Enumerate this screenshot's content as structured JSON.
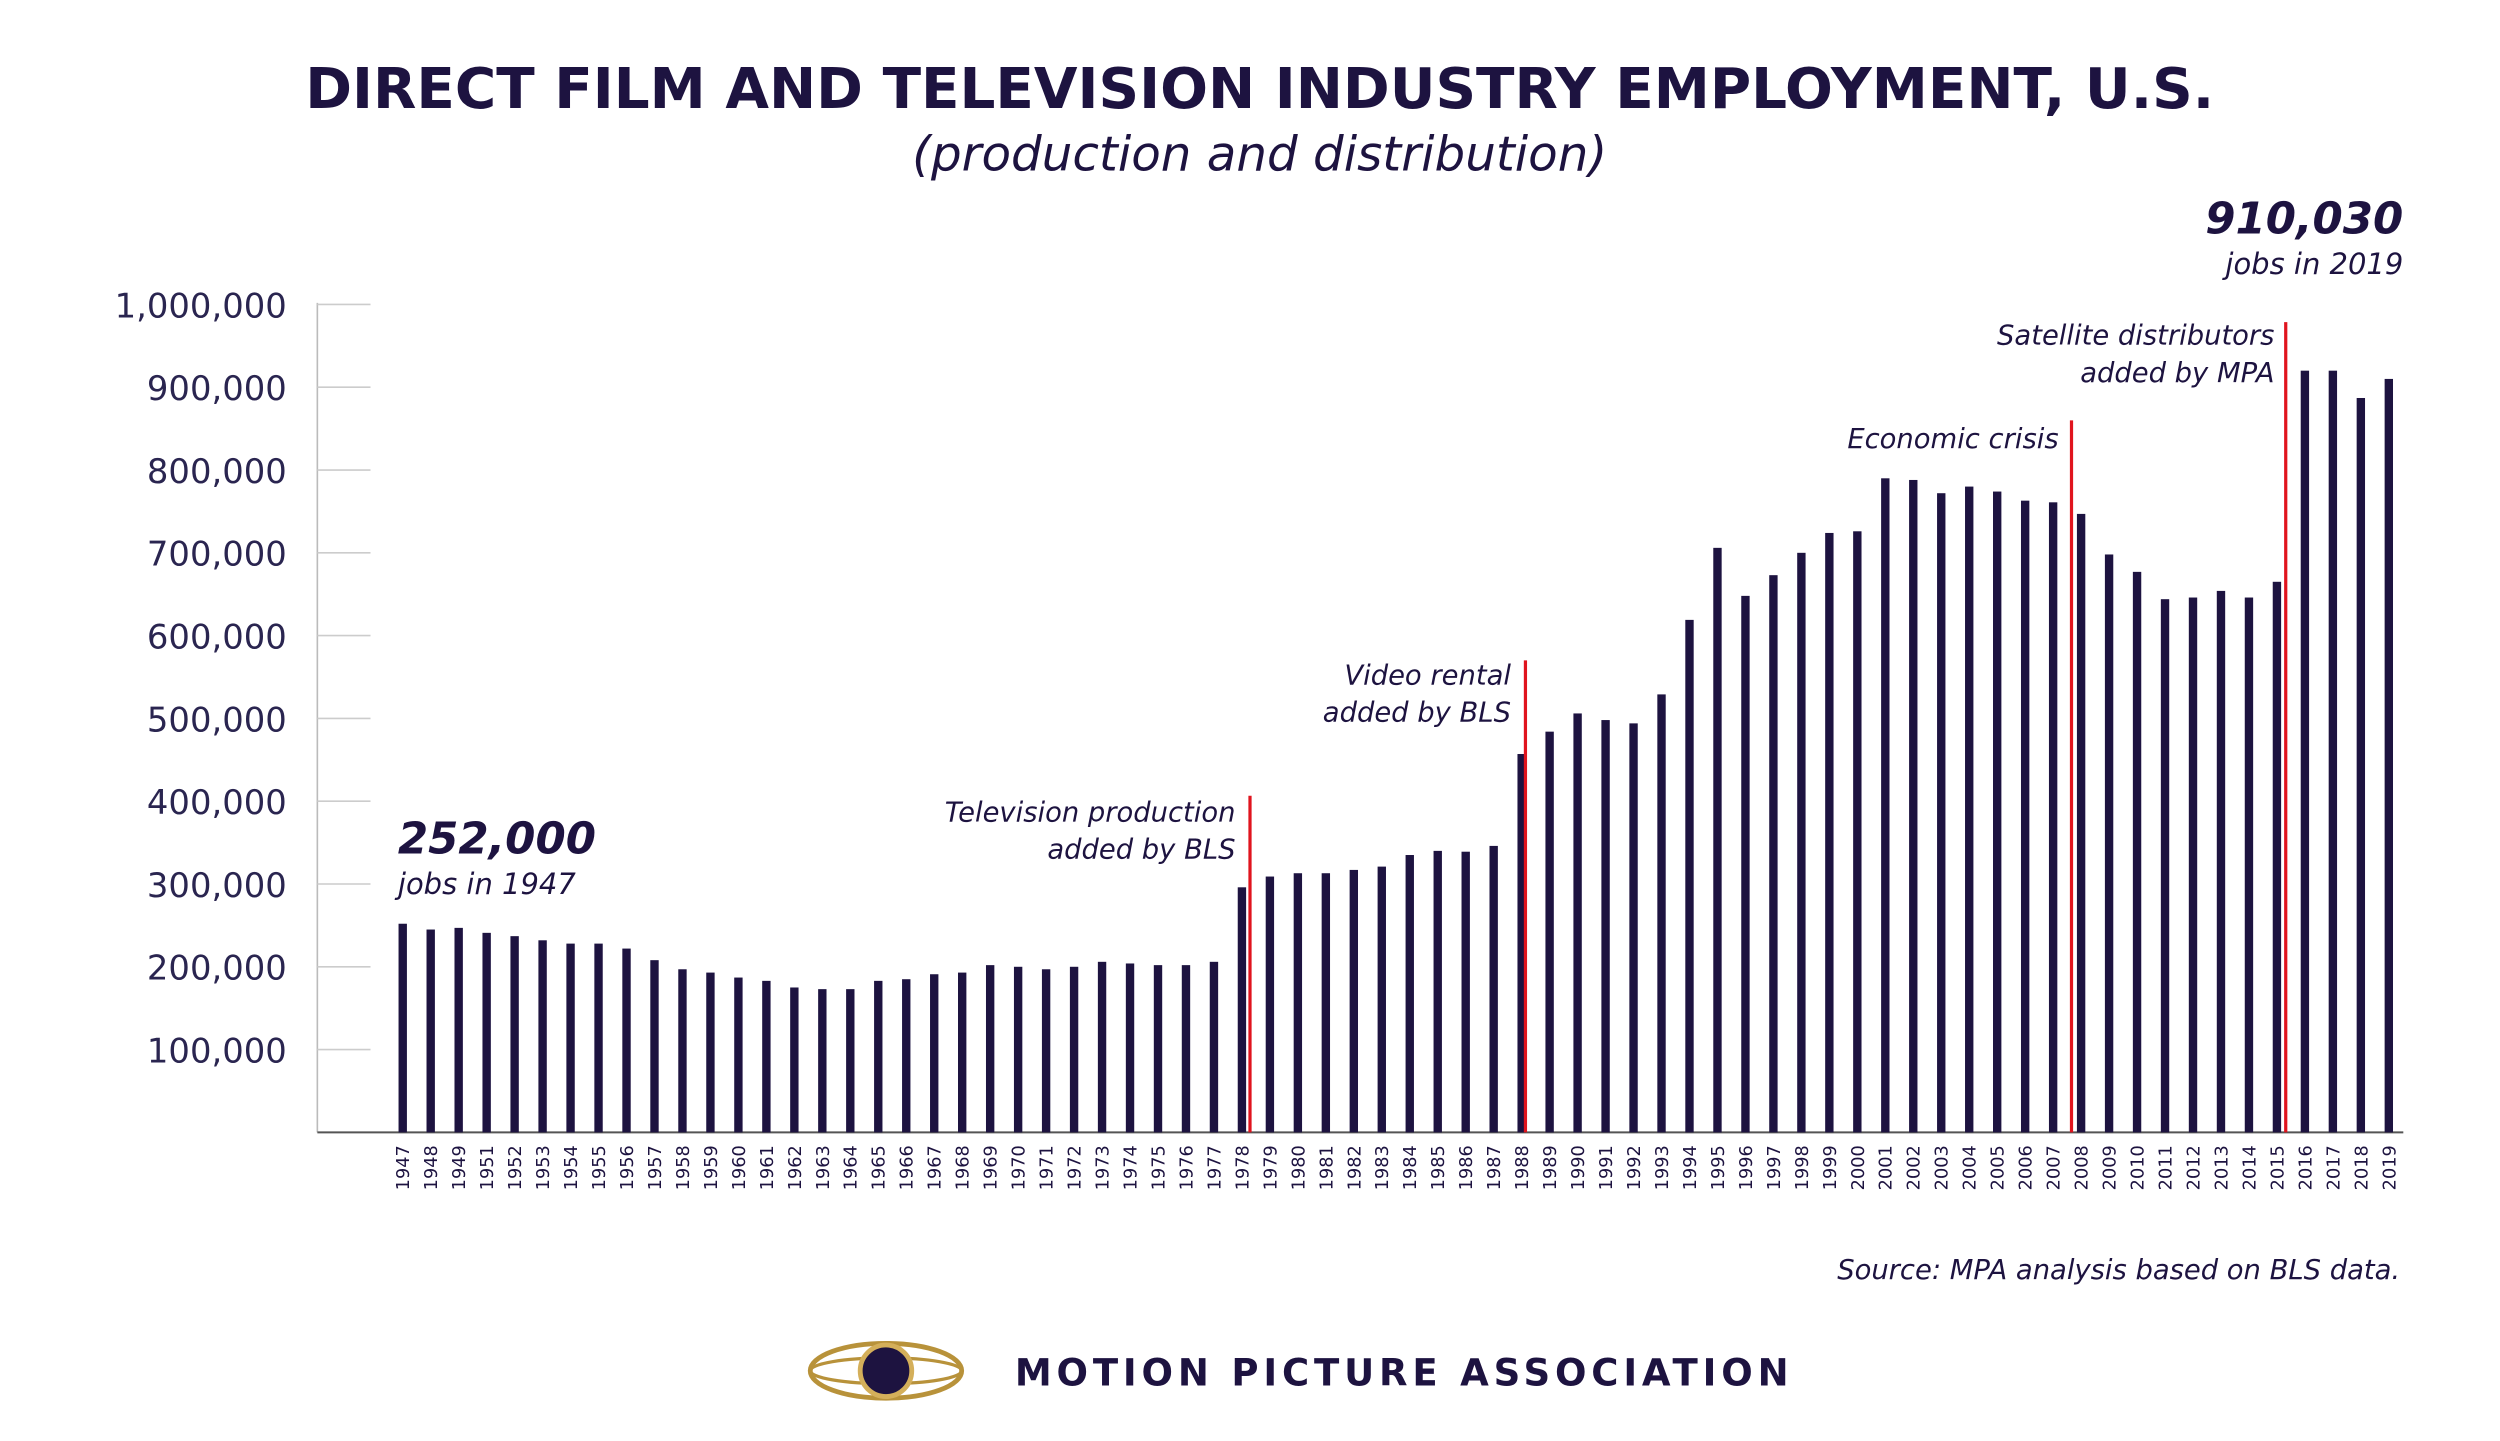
{
  "chart_data": {
    "type": "bar",
    "title": "DIRECT FILM AND TELEVISION INDUSTRY EMPLOYMENT, U.S.",
    "subtitle": "(production and distribution)",
    "categories": [
      "1947",
      "1948",
      "1949",
      "1951",
      "1952",
      "1953",
      "1954",
      "1955",
      "1956",
      "1957",
      "1958",
      "1959",
      "1960",
      "1961",
      "1962",
      "1963",
      "1964",
      "1965",
      "1966",
      "1967",
      "1968",
      "1969",
      "1970",
      "1971",
      "1972",
      "1973",
      "1974",
      "1975",
      "1976",
      "1977",
      "1978",
      "1979",
      "1980",
      "1981",
      "1982",
      "1983",
      "1984",
      "1985",
      "1986",
      "1987",
      "1988",
      "1989",
      "1990",
      "1991",
      "1992",
      "1993",
      "1994",
      "1995",
      "1996",
      "1997",
      "1998",
      "1999",
      "2000",
      "2001",
      "2002",
      "2003",
      "2004",
      "2005",
      "2006",
      "2007",
      "2008",
      "2009",
      "2010",
      "2011",
      "2012",
      "2013",
      "2014",
      "2015",
      "2016",
      "2017",
      "2018",
      "2019"
    ],
    "values": [
      252000,
      245000,
      247000,
      241000,
      237000,
      232000,
      228000,
      228000,
      222000,
      208000,
      197000,
      193000,
      187000,
      183000,
      175000,
      173000,
      173000,
      183000,
      185000,
      191000,
      193000,
      202000,
      200000,
      197000,
      200000,
      206000,
      204000,
      202000,
      202000,
      206000,
      296000,
      309000,
      313000,
      313000,
      317000,
      321000,
      335000,
      340000,
      339000,
      346000,
      457000,
      484000,
      506000,
      498000,
      494000,
      529000,
      619000,
      706000,
      648000,
      673000,
      700000,
      724000,
      726000,
      790000,
      788000,
      772000,
      780000,
      774000,
      763000,
      761000,
      747000,
      698000,
      677000,
      644000,
      646000,
      654000,
      646000,
      665000,
      920000,
      920000,
      887000,
      910030
    ],
    "color": "#1d1340",
    "ylim": [
      0,
      1000000
    ],
    "yticks": [
      {
        "value": 100000,
        "label": "100,000"
      },
      {
        "value": 200000,
        "label": "200,000"
      },
      {
        "value": 300000,
        "label": "300,000"
      },
      {
        "value": 400000,
        "label": "400,000"
      },
      {
        "value": 500000,
        "label": "500,000"
      },
      {
        "value": 600000,
        "label": "600,000"
      },
      {
        "value": 700000,
        "label": "700,000"
      },
      {
        "value": 800000,
        "label": "800,000"
      },
      {
        "value": 900000,
        "label": "900,000"
      },
      {
        "value": 1000000,
        "label": "1,000,000"
      }
    ],
    "callouts": [
      {
        "value_label": "252,000",
        "text": "jobs in 1947"
      },
      {
        "value_label": "910,030",
        "text": "jobs in 2019"
      }
    ],
    "annotations": [
      {
        "lines": [
          "Television production",
          "added by BLS"
        ],
        "color": "#e0141e"
      },
      {
        "lines": [
          "Video rental",
          "added by BLS"
        ],
        "color": "#e0141e"
      },
      {
        "lines": [
          "Economic crisis"
        ],
        "color": "#e0141e"
      },
      {
        "lines": [
          "Satellite distributors",
          "added by MPA"
        ],
        "color": "#e0141e"
      }
    ],
    "source": "Source: MPA analysis based on BLS data.",
    "footer": "MOTION PICTURE ASSOCIATION"
  }
}
